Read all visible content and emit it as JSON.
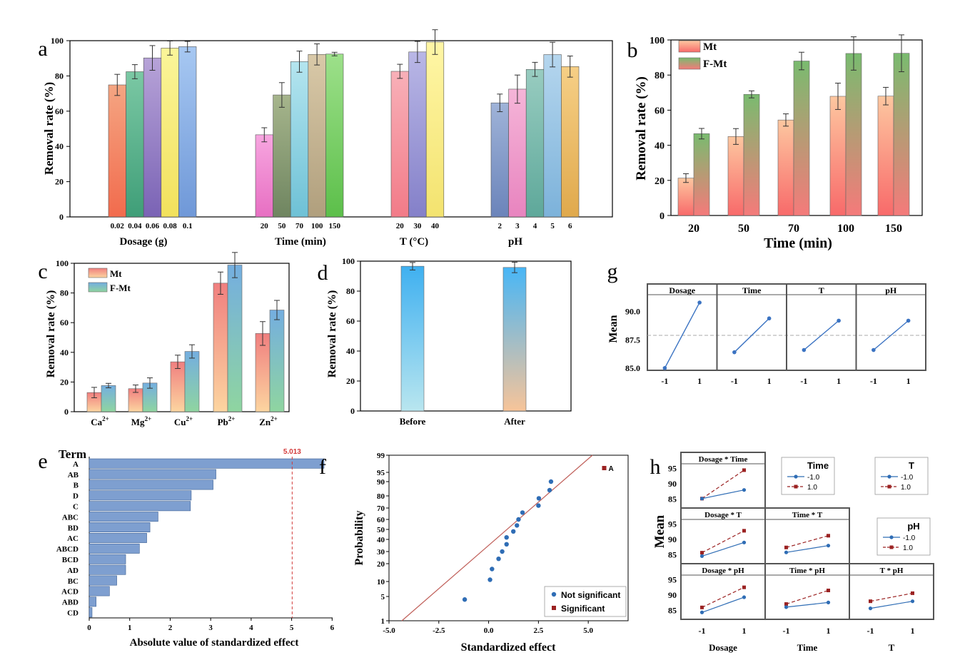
{
  "colors": {
    "a": [
      [
        "#f4a582",
        "#f26b4d"
      ],
      [
        "#7bc8a4",
        "#3f9e78"
      ],
      [
        "#b7a3d8",
        "#7a63b5"
      ],
      [
        "#fbf59a",
        "#f2e15c"
      ],
      [
        "#a7c8f2",
        "#6f98d8"
      ],
      [
        "#f7a6e0",
        "#e76fc2"
      ],
      [
        "#a6b58c",
        "#6f8560"
      ],
      [
        "#b4e5ef",
        "#6ec1d6"
      ],
      [
        "#d9c9a8",
        "#b09f7d"
      ],
      [
        "#9de08a",
        "#5cbf4a"
      ],
      [
        "#f8b0b8",
        "#f27b88"
      ],
      [
        "#b9b7e6",
        "#8480c9"
      ],
      [
        "#fff6a6",
        "#f3e36f"
      ],
      [
        "#9fb3d8",
        "#6b84ba"
      ],
      [
        "#f5b5d8",
        "#e884bf"
      ],
      [
        "#98ccc0",
        "#5ea89a"
      ],
      [
        "#b5d6ee",
        "#7cb2da"
      ],
      [
        "#f6cf86",
        "#e0a94c"
      ]
    ],
    "mt": [
      "#fdc7a0",
      "#f86a6a"
    ],
    "fmt": [
      "#79bb6f",
      "#f57a7a"
    ],
    "mt_c": [
      "#f07f7f",
      "#fcd5a0"
    ],
    "fmt_c": [
      "#74aee0",
      "#8fd5a0"
    ],
    "d_before": [
      "#3fb0f0",
      "#b9e6ef"
    ],
    "d_after": [
      "#48b6f6",
      "#f7c499"
    ],
    "bar_e": "#7e9fd0",
    "line_g": "#3b73c2",
    "blue_h": "#2f6db5",
    "red_h": "#9b2222",
    "ref_red": "#d33a3a",
    "f_line": "#c0605a"
  },
  "chart_data": [
    {
      "id": "a",
      "type": "bar",
      "panel_label": "a",
      "ylabel": "Removal rate (%)",
      "ylim": [
        0,
        100
      ],
      "yticks": [
        0,
        20,
        40,
        60,
        80,
        100
      ],
      "groups": [
        {
          "xlabel": "Dosage (g)",
          "categories": [
            "0.02",
            "0.04",
            "0.06",
            "0.08",
            "0.1"
          ],
          "values": [
            74.9,
            82.4,
            90.2,
            95.8,
            96.6
          ],
          "errors": [
            6,
            4,
            7,
            4,
            3
          ]
        },
        {
          "xlabel": "Time (min)",
          "categories": [
            "20",
            "50",
            "70",
            "100",
            "150"
          ],
          "values": [
            46.6,
            69.2,
            88.1,
            92.2,
            92.4
          ],
          "errors": [
            4,
            7,
            6,
            6,
            1
          ]
        },
        {
          "xlabel": "T (°C)",
          "categories": [
            "20",
            "30",
            "40"
          ],
          "values": [
            82.6,
            93.6,
            99.2
          ],
          "errors": [
            4,
            6,
            7
          ]
        },
        {
          "xlabel": "pH",
          "categories": [
            "2",
            "3",
            "4",
            "5",
            "6"
          ],
          "values": [
            64.7,
            72.5,
            83.7,
            92.1,
            85.3
          ],
          "errors": [
            5,
            8,
            4,
            7,
            6
          ]
        }
      ]
    },
    {
      "id": "b",
      "type": "bar",
      "panel_label": "b",
      "xlabel": "Time (min)",
      "ylabel": "Removal rate (%)",
      "ylim": [
        0,
        100
      ],
      "yticks": [
        0,
        20,
        40,
        60,
        80,
        100
      ],
      "categories": [
        "20",
        "50",
        "70",
        "100",
        "150"
      ],
      "series": [
        {
          "name": "Mt",
          "values": [
            21.3,
            45.0,
            54.4,
            67.9,
            68.0
          ],
          "errors": [
            2.5,
            4.5,
            3.5,
            7.5,
            5
          ]
        },
        {
          "name": "F-Mt",
          "values": [
            46.6,
            69.0,
            88.0,
            92.3,
            92.4
          ],
          "errors": [
            3,
            2,
            5,
            9.5,
            10.5
          ]
        }
      ]
    },
    {
      "id": "c",
      "type": "bar",
      "panel_label": "c",
      "ylabel": "Removal rate (%)",
      "ylim": [
        0,
        100
      ],
      "yticks": [
        0,
        20,
        40,
        60,
        80,
        100
      ],
      "categories": [
        {
          "base": "Ca",
          "sup": "2+"
        },
        {
          "base": "Mg",
          "sup": "2+"
        },
        {
          "base": "Cu",
          "sup": "2+"
        },
        {
          "base": "Pb",
          "sup": "2+"
        },
        {
          "base": "Zn",
          "sup": "2+"
        }
      ],
      "series": [
        {
          "name": "Mt",
          "values": [
            12.9,
            15.5,
            33.6,
            86.6,
            52.7
          ],
          "errors": [
            3.5,
            2.5,
            4.5,
            7.5,
            8
          ]
        },
        {
          "name": "F-Mt",
          "values": [
            17.6,
            19.3,
            40.6,
            98.8,
            68.5
          ],
          "errors": [
            1.5,
            3.5,
            4.5,
            8.5,
            6.5
          ]
        }
      ]
    },
    {
      "id": "d",
      "type": "bar",
      "panel_label": "d",
      "ylabel": "Removal rate (%)",
      "ylim": [
        0,
        100
      ],
      "yticks": [
        0,
        20,
        40,
        60,
        80,
        100
      ],
      "categories": [
        "Before",
        "After"
      ],
      "values": [
        96.6,
        95.8
      ],
      "errors": [
        2.5,
        3.5
      ]
    },
    {
      "id": "e",
      "type": "bar",
      "orientation": "horizontal",
      "panel_label": "e",
      "title": "Term",
      "xlabel": "Absolute value of standardized effect",
      "xlim": [
        0,
        6
      ],
      "xticks": [
        0,
        1,
        2,
        3,
        4,
        5,
        6
      ],
      "reference_line": {
        "value": 5.013,
        "label": "5.013"
      },
      "categories": [
        "A",
        "AB",
        "B",
        "D",
        "C",
        "ABC",
        "BD",
        "AC",
        "ABCD",
        "BCD",
        "AD",
        "BC",
        "ACD",
        "ABD",
        "CD"
      ],
      "values": [
        5.8,
        3.13,
        3.06,
        2.52,
        2.5,
        1.7,
        1.5,
        1.42,
        1.24,
        0.9,
        0.9,
        0.68,
        0.5,
        0.17,
        0.07
      ]
    },
    {
      "id": "f",
      "type": "scatter",
      "panel_label": "f",
      "xlabel": "Standardized effect",
      "ylabel": "Probability",
      "xlim": [
        -5,
        7
      ],
      "xticks": [
        -5.0,
        -2.5,
        0.0,
        2.5,
        5.0
      ],
      "yticks": [
        1,
        5,
        10,
        20,
        30,
        40,
        50,
        60,
        70,
        80,
        90,
        95,
        99
      ],
      "legend": [
        "Not significant",
        "Significant"
      ],
      "series": [
        {
          "name": "Not significant",
          "x": [
            -1.2,
            0.07,
            0.17,
            0.5,
            0.68,
            0.9,
            0.9,
            1.24,
            1.42,
            1.5,
            1.7,
            2.5,
            2.52,
            3.06,
            3.13
          ],
          "y": [
            4.5,
            11,
            17,
            24,
            30,
            36,
            42,
            48,
            54,
            60,
            66,
            72,
            78,
            84,
            90
          ]
        },
        {
          "name": "Significant",
          "x": [
            5.8
          ],
          "y": [
            96
          ]
        }
      ],
      "point_label": "A"
    },
    {
      "id": "g",
      "type": "line",
      "panel_label": "g",
      "ylabel": "Mean",
      "yticks": [
        "85.0",
        "87.5",
        "90.0"
      ],
      "ylim": [
        84.8,
        91.5
      ],
      "mean_ref": 87.9,
      "facets": [
        {
          "name": "Dosage",
          "x": [
            "-1",
            "1"
          ],
          "y": [
            85.0,
            90.8
          ]
        },
        {
          "name": "Time",
          "x": [
            "-1",
            "1"
          ],
          "y": [
            86.4,
            89.4
          ]
        },
        {
          "name": "T",
          "x": [
            "-1",
            "1"
          ],
          "y": [
            86.6,
            89.2
          ]
        },
        {
          "name": "pH",
          "x": [
            "-1",
            "1"
          ],
          "y": [
            86.6,
            89.2
          ]
        }
      ]
    },
    {
      "id": "h",
      "type": "line",
      "panel_label": "h",
      "ylabel": "Mean",
      "yticks": [
        "85",
        "90",
        "95"
      ],
      "ylim": [
        84,
        96
      ],
      "xlabels": [
        "Dosage",
        "Time",
        "T"
      ],
      "xticks": [
        "-1",
        "1"
      ],
      "legends": [
        {
          "title": "Time",
          "items": [
            "-1.0",
            "1.0"
          ]
        },
        {
          "title": "T",
          "items": [
            "-1.0",
            "1.0"
          ]
        },
        {
          "title": "pH",
          "items": [
            "-1.0",
            "1.0"
          ]
        }
      ],
      "cells": [
        {
          "title": "Dosage * Time",
          "row": 0,
          "col": 0,
          "low": [
            85.2,
            88.0
          ],
          "high": [
            85.2,
            94.4
          ]
        },
        {
          "title": "Dosage * T",
          "row": 1,
          "col": 0,
          "low": [
            84.6,
            89.0
          ],
          "high": [
            85.7,
            92.8
          ]
        },
        {
          "title": "Time * T",
          "row": 1,
          "col": 1,
          "low": [
            85.8,
            88.0
          ],
          "high": [
            87.4,
            91.2
          ]
        },
        {
          "title": "Dosage * pH",
          "row": 2,
          "col": 0,
          "low": [
            84.4,
            89.3
          ],
          "high": [
            86.0,
            92.5
          ]
        },
        {
          "title": "Time * pH",
          "row": 2,
          "col": 1,
          "low": [
            86.1,
            87.6
          ],
          "high": [
            87.1,
            91.5
          ]
        },
        {
          "title": "T * pH",
          "row": 2,
          "col": 2,
          "low": [
            85.7,
            88.0
          ],
          "high": [
            88.0,
            90.6
          ]
        }
      ]
    }
  ]
}
